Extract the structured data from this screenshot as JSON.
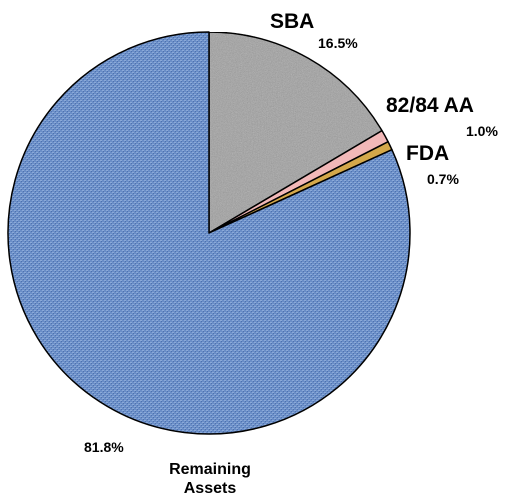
{
  "chart_data": {
    "type": "pie",
    "slices": [
      {
        "label": "SBA",
        "percent_label": "16.5%",
        "value": 16.5,
        "color": "#c0c0c0"
      },
      {
        "label": "82/84 AA",
        "percent_label": "1.0%",
        "value": 1.0,
        "color": "#f2b8b8"
      },
      {
        "label": "FDA",
        "percent_label": "0.7%",
        "value": 0.7,
        "color": "#d4a84a"
      },
      {
        "label": "Remaining Assets",
        "label_lines": [
          "Remaining",
          "Assets"
        ],
        "percent_label": "81.8%",
        "value": 81.8,
        "color": "#6a8ec8"
      }
    ],
    "start_angle_deg": 0,
    "direction": "clockwise"
  }
}
